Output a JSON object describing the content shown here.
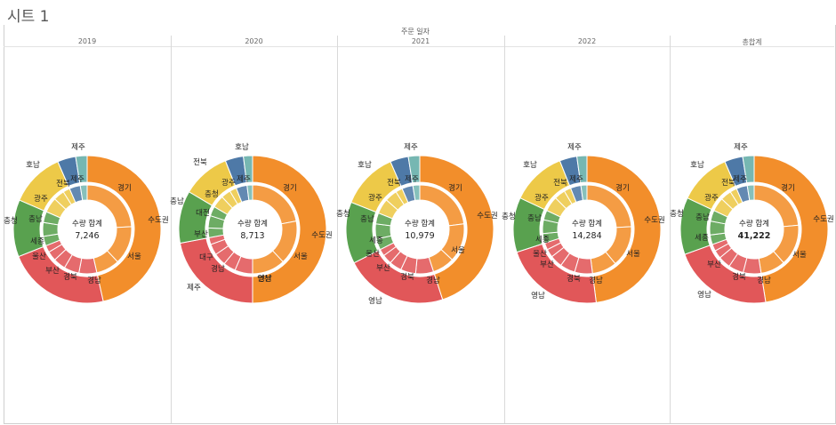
{
  "sheet_title": "시트 1",
  "column_field_label": "주문 일자",
  "colors": {
    "수도권": "#f28e2b",
    "영남": "#e15759",
    "충청": "#59a14f",
    "호남": "#edc948",
    "제주": "#4e79a7",
    "기타": "#76b7b2"
  },
  "chart_data": [
    {
      "type": "pie",
      "column": "2019",
      "measure_label": "수량 합계",
      "total": "7,246",
      "outer": [
        {
          "label": "수도권",
          "value": 46.5,
          "color": "#f28e2b"
        },
        {
          "label": "영남",
          "value": 22.5,
          "color": "#e15759"
        },
        {
          "label": "충청",
          "value": 12.5,
          "color": "#59a14f"
        },
        {
          "label": "호남",
          "value": 12.0,
          "color": "#edc948"
        },
        {
          "label": "제주",
          "value": 4.0,
          "color": "#4e79a7"
        },
        {
          "label": "",
          "value": 2.5,
          "color": "#76b7b2"
        }
      ],
      "inner": [
        {
          "label": "경기",
          "value": 24,
          "color": "#f28e2b"
        },
        {
          "label": "서울",
          "value": 14,
          "color": "#f28e2b"
        },
        {
          "label": "",
          "value": 8.5,
          "color": "#f28e2b"
        },
        {
          "label": "경남",
          "value": 6.5,
          "color": "#e15759"
        },
        {
          "label": "경북",
          "value": 5.5,
          "color": "#e15759"
        },
        {
          "label": "부산",
          "value": 4.5,
          "color": "#e15759"
        },
        {
          "label": "울산",
          "value": 3.5,
          "color": "#e15759"
        },
        {
          "label": "",
          "value": 2.5,
          "color": "#e15759"
        },
        {
          "label": "세종",
          "value": 3.5,
          "color": "#59a14f"
        },
        {
          "label": "충남",
          "value": 5,
          "color": "#59a14f"
        },
        {
          "label": "",
          "value": 4,
          "color": "#59a14f"
        },
        {
          "label": "광주",
          "value": 5.5,
          "color": "#edc948"
        },
        {
          "label": "전북",
          "value": 4,
          "color": "#edc948"
        },
        {
          "label": "",
          "value": 2.5,
          "color": "#edc948"
        },
        {
          "label": "제주",
          "value": 4,
          "color": "#4e79a7"
        },
        {
          "label": "",
          "value": 2.5,
          "color": "#76b7b2"
        }
      ],
      "outer_text": [
        "경기",
        "수도권",
        "서울",
        "경남",
        "경북",
        "부산",
        "울산",
        "세종",
        "충남",
        "충청",
        "광주",
        "전북",
        "호남",
        "제주",
        "제주"
      ]
    },
    {
      "type": "pie",
      "column": "2020",
      "measure_label": "수량 합계",
      "total": "8,713",
      "outer": [
        {
          "label": "수도권",
          "value": 50.0,
          "color": "#f28e2b"
        },
        {
          "label": "영남",
          "value": 22.0,
          "color": "#e15759"
        },
        {
          "label": "충청",
          "value": 11.5,
          "color": "#59a14f"
        },
        {
          "label": "호남",
          "value": 10.5,
          "color": "#edc948"
        },
        {
          "label": "제주",
          "value": 4.0,
          "color": "#4e79a7"
        },
        {
          "label": "",
          "value": 2.0,
          "color": "#76b7b2"
        }
      ],
      "inner": [
        {
          "label": "경기",
          "value": 22,
          "color": "#f28e2b"
        },
        {
          "label": "서울",
          "value": 16,
          "color": "#f28e2b"
        },
        {
          "label": "인천",
          "value": 12,
          "color": "#f28e2b"
        },
        {
          "label": "경남",
          "value": 6.5,
          "color": "#e15759"
        },
        {
          "label": "",
          "value": 4.5,
          "color": "#e15759"
        },
        {
          "label": "대구",
          "value": 4.5,
          "color": "#e15759"
        },
        {
          "label": "부산",
          "value": 4,
          "color": "#e15759"
        },
        {
          "label": "",
          "value": 2.5,
          "color": "#e15759"
        },
        {
          "label": "대전",
          "value": 3.5,
          "color": "#59a14f"
        },
        {
          "label": "충남",
          "value": 4.5,
          "color": "#59a14f"
        },
        {
          "label": "",
          "value": 3.5,
          "color": "#59a14f"
        },
        {
          "label": "광주",
          "value": 4.5,
          "color": "#edc948"
        },
        {
          "label": "전북",
          "value": 3.5,
          "color": "#edc948"
        },
        {
          "label": "",
          "value": 2.5,
          "color": "#edc948"
        },
        {
          "label": "제주",
          "value": 4,
          "color": "#4e79a7"
        },
        {
          "label": "",
          "value": 2,
          "color": "#76b7b2"
        }
      ],
      "outer_text": [
        "경기",
        "수도권",
        "서울",
        "인천",
        "경남",
        "대구",
        "부산",
        "대전",
        "충남",
        "충청",
        "광주",
        "전북",
        "호남",
        "제주",
        "제주",
        "영남"
      ]
    },
    {
      "type": "pie",
      "column": "2021",
      "measure_label": "수량 합계",
      "total": "10,979",
      "outer": [
        {
          "label": "수도권",
          "value": 45.0,
          "color": "#f28e2b"
        },
        {
          "label": "영남",
          "value": 22.5,
          "color": "#e15759"
        },
        {
          "label": "충청",
          "value": 13.5,
          "color": "#59a14f"
        },
        {
          "label": "호남",
          "value": 12.5,
          "color": "#edc948"
        },
        {
          "label": "제주",
          "value": 4.0,
          "color": "#4e79a7"
        },
        {
          "label": "",
          "value": 2.5,
          "color": "#76b7b2"
        }
      ],
      "inner": [
        {
          "label": "경기",
          "value": 23,
          "color": "#f28e2b"
        },
        {
          "label": "서울",
          "value": 14,
          "color": "#f28e2b"
        },
        {
          "label": "",
          "value": 8,
          "color": "#f28e2b"
        },
        {
          "label": "경남",
          "value": 6.5,
          "color": "#e15759"
        },
        {
          "label": "경북",
          "value": 5.5,
          "color": "#e15759"
        },
        {
          "label": "부산",
          "value": 4.5,
          "color": "#e15759"
        },
        {
          "label": "울산",
          "value": 3.5,
          "color": "#e15759"
        },
        {
          "label": "",
          "value": 2.5,
          "color": "#e15759"
        },
        {
          "label": "세종",
          "value": 4,
          "color": "#59a14f"
        },
        {
          "label": "충남",
          "value": 5.5,
          "color": "#59a14f"
        },
        {
          "label": "",
          "value": 4,
          "color": "#59a14f"
        },
        {
          "label": "광주",
          "value": 5.5,
          "color": "#edc948"
        },
        {
          "label": "전북",
          "value": 4.5,
          "color": "#edc948"
        },
        {
          "label": "",
          "value": 2.5,
          "color": "#edc948"
        },
        {
          "label": "제주",
          "value": 4,
          "color": "#4e79a7"
        },
        {
          "label": "",
          "value": 2.5,
          "color": "#76b7b2"
        }
      ],
      "outer_text": [
        "경기",
        "수도권",
        "서울",
        "경남",
        "경북",
        "부산",
        "울산",
        "세종",
        "충남",
        "충청",
        "광주",
        "전북",
        "호남",
        "제주",
        "제주",
        "영남"
      ]
    },
    {
      "type": "pie",
      "column": "2022",
      "measure_label": "수량 합계",
      "total": "14,284",
      "outer": [
        {
          "label": "수도권",
          "value": 48.0,
          "color": "#f28e2b"
        },
        {
          "label": "영남",
          "value": 22.0,
          "color": "#e15759"
        },
        {
          "label": "충청",
          "value": 12.0,
          "color": "#59a14f"
        },
        {
          "label": "호남",
          "value": 12.0,
          "color": "#edc948"
        },
        {
          "label": "제주",
          "value": 3.8,
          "color": "#4e79a7"
        },
        {
          "label": "",
          "value": 2.2,
          "color": "#76b7b2"
        }
      ],
      "inner": [
        {
          "label": "경기",
          "value": 24,
          "color": "#f28e2b"
        },
        {
          "label": "서울",
          "value": 15,
          "color": "#f28e2b"
        },
        {
          "label": "",
          "value": 9,
          "color": "#f28e2b"
        },
        {
          "label": "경남",
          "value": 6.5,
          "color": "#e15759"
        },
        {
          "label": "경북",
          "value": 5.5,
          "color": "#e15759"
        },
        {
          "label": "부산",
          "value": 4.5,
          "color": "#e15759"
        },
        {
          "label": "울산",
          "value": 3,
          "color": "#e15759"
        },
        {
          "label": "",
          "value": 2.5,
          "color": "#e15759"
        },
        {
          "label": "세종",
          "value": 3.5,
          "color": "#59a14f"
        },
        {
          "label": "충남",
          "value": 5,
          "color": "#59a14f"
        },
        {
          "label": "",
          "value": 3.5,
          "color": "#59a14f"
        },
        {
          "label": "광주",
          "value": 5.5,
          "color": "#edc948"
        },
        {
          "label": "전북",
          "value": 4,
          "color": "#edc948"
        },
        {
          "label": "",
          "value": 2.5,
          "color": "#edc948"
        },
        {
          "label": "제주",
          "value": 3.8,
          "color": "#4e79a7"
        },
        {
          "label": "",
          "value": 2.2,
          "color": "#76b7b2"
        }
      ],
      "outer_text": [
        "경기",
        "수도권",
        "서울",
        "경남",
        "경북",
        "부산",
        "울산",
        "세종",
        "충남",
        "충청",
        "광주",
        "전북",
        "호남",
        "제주",
        "제주",
        "영남"
      ]
    },
    {
      "type": "pie",
      "column": "총합계",
      "measure_label": "수량 합계",
      "total": "41,222",
      "total_bold": true,
      "outer": [
        {
          "label": "수도권",
          "value": 47.5,
          "color": "#f28e2b"
        },
        {
          "label": "영남",
          "value": 22.0,
          "color": "#e15759"
        },
        {
          "label": "충청",
          "value": 12.5,
          "color": "#59a14f"
        },
        {
          "label": "호남",
          "value": 11.5,
          "color": "#edc948"
        },
        {
          "label": "제주",
          "value": 4.0,
          "color": "#4e79a7"
        },
        {
          "label": "",
          "value": 2.5,
          "color": "#76b7b2"
        }
      ],
      "inner": [
        {
          "label": "경기",
          "value": 23.5,
          "color": "#f28e2b"
        },
        {
          "label": "서울",
          "value": 15,
          "color": "#f28e2b"
        },
        {
          "label": "",
          "value": 9,
          "color": "#f28e2b"
        },
        {
          "label": "경남",
          "value": 6.5,
          "color": "#e15759"
        },
        {
          "label": "경북",
          "value": 5.5,
          "color": "#e15759"
        },
        {
          "label": "부산",
          "value": 4.5,
          "color": "#e15759"
        },
        {
          "label": "",
          "value": 3,
          "color": "#e15759"
        },
        {
          "label": "",
          "value": 2.5,
          "color": "#e15759"
        },
        {
          "label": "세종",
          "value": 3.5,
          "color": "#59a14f"
        },
        {
          "label": "충남",
          "value": 5,
          "color": "#59a14f"
        },
        {
          "label": "",
          "value": 4,
          "color": "#59a14f"
        },
        {
          "label": "광주",
          "value": 5,
          "color": "#edc948"
        },
        {
          "label": "전북",
          "value": 4,
          "color": "#edc948"
        },
        {
          "label": "",
          "value": 2.5,
          "color": "#edc948"
        },
        {
          "label": "제주",
          "value": 4,
          "color": "#4e79a7"
        },
        {
          "label": "",
          "value": 2.5,
          "color": "#76b7b2"
        }
      ],
      "outer_text": [
        "경기",
        "수도권",
        "서울",
        "경남",
        "경북",
        "부산",
        "세종",
        "충남",
        "충청",
        "광주",
        "전북",
        "호남",
        "제주",
        "제주",
        "영남"
      ]
    }
  ]
}
